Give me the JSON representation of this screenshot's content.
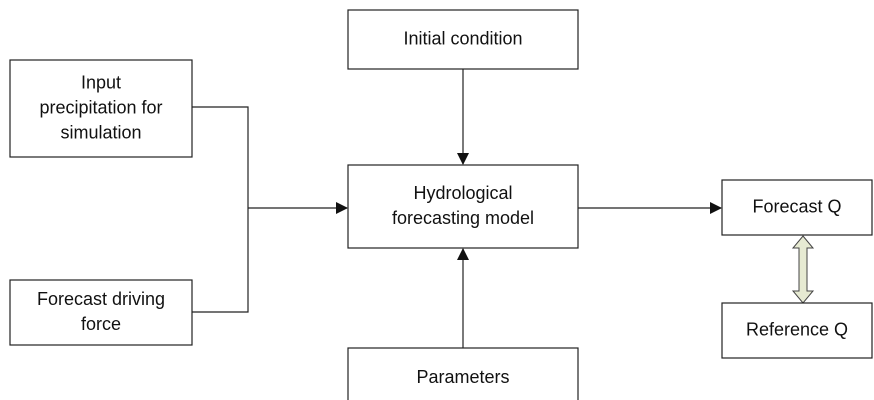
{
  "nodes": [
    {
      "id": "initial",
      "lines": [
        "Initial condition"
      ]
    },
    {
      "id": "input",
      "lines": [
        "Input",
        "precipitation for",
        "simulation"
      ]
    },
    {
      "id": "model",
      "lines": [
        "Hydrological",
        "forecasting model"
      ]
    },
    {
      "id": "driving",
      "lines": [
        "Forecast driving",
        "force"
      ]
    },
    {
      "id": "parameters",
      "lines": [
        "Parameters"
      ]
    },
    {
      "id": "forecast",
      "lines": [
        "Forecast Q"
      ]
    },
    {
      "id": "reference",
      "lines": [
        "Reference Q"
      ]
    }
  ]
}
